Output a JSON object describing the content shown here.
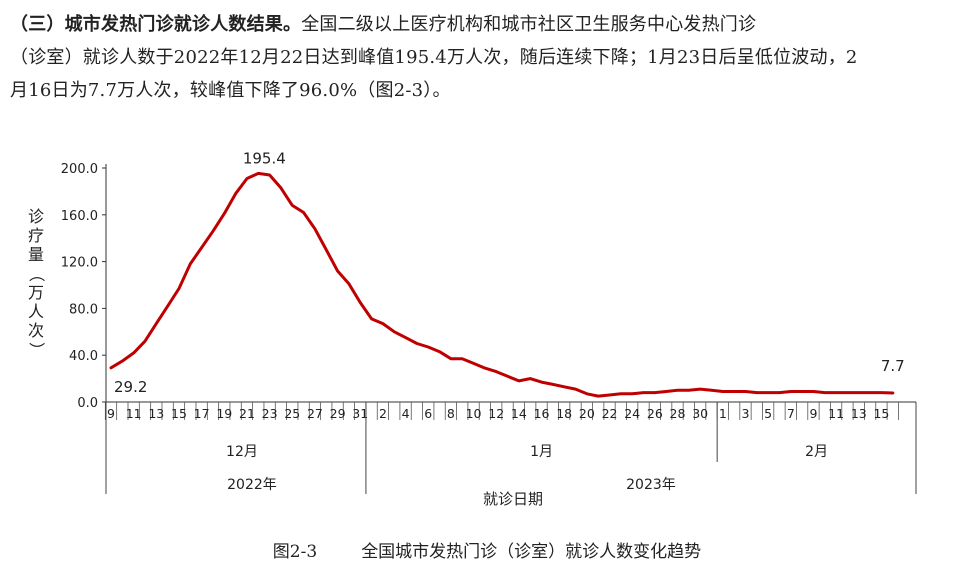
{
  "paragraph": {
    "heading": "（三）城市发热门诊就诊人数结果。",
    "body": "全国二级以上医疗机构和城市社区卫生服务中心发热门诊（诊室）就诊人数于2022年12月22日达到峰值195.4万人次，随后连续下降；1月23日后呈低位波动，2月16日为7.7万人次，较峰值下降了96.0%（图2-3）。",
    "lines": [
      [
        "（三）城市发热门诊就诊人数结果。",
        "全国二级以上医疗机构和城市社区卫生服务中心发热门诊"
      ],
      [
        "",
        "（诊室）就诊人数于2022年12月22日达到峰值195.4万人次，随后连续下降；1月23日后呈低位波动，2"
      ],
      [
        "",
        "月16日为7.7万人次，较峰值下降了96.0%（图2-3）。"
      ]
    ]
  },
  "caption": {
    "number": "图2-3",
    "text": "全国城市发热门诊（诊室）就诊人数变化趋势"
  },
  "chart_data": {
    "type": "line",
    "ylabel": "诊疗量（万人次）",
    "xlabel": "就诊日期",
    "ylim": [
      0,
      200
    ],
    "yticks": [
      "0.0",
      "40.0",
      "80.0",
      "120.0",
      "160.0",
      "200.0"
    ],
    "grid": false,
    "line_color": "#c00000",
    "x_tick_labels": [
      "9",
      "11",
      "13",
      "15",
      "17",
      "19",
      "21",
      "23",
      "25",
      "27",
      "29",
      "31",
      "2",
      "4",
      "6",
      "8",
      "10",
      "12",
      "14",
      "16",
      "18",
      "20",
      "22",
      "24",
      "26",
      "28",
      "30",
      "1",
      "3",
      "5",
      "7",
      "9",
      "11",
      "13",
      "15"
    ],
    "months": [
      {
        "label": "12月",
        "year": "2022年"
      },
      {
        "label": "1月",
        "year": "2023年"
      },
      {
        "label": "2月",
        "year": "2023年"
      }
    ],
    "years": [
      "2022年",
      "2023年"
    ],
    "annotations": [
      {
        "text": "195.4",
        "x": "2022-12-22"
      },
      {
        "text": "29.2",
        "x": "2022-12-09"
      },
      {
        "text": "7.7",
        "x": "2023-02-16"
      }
    ],
    "series": [
      {
        "x": [
          "2022-12-09",
          "2022-12-10",
          "2022-12-11",
          "2022-12-12",
          "2022-12-13",
          "2022-12-14",
          "2022-12-15",
          "2022-12-16",
          "2022-12-17",
          "2022-12-18",
          "2022-12-19",
          "2022-12-20",
          "2022-12-21",
          "2022-12-22",
          "2022-12-23",
          "2022-12-24",
          "2022-12-25",
          "2022-12-26",
          "2022-12-27",
          "2022-12-28",
          "2022-12-29",
          "2022-12-30",
          "2022-12-31",
          "2023-01-01",
          "2023-01-02",
          "2023-01-03",
          "2023-01-04",
          "2023-01-05",
          "2023-01-06",
          "2023-01-07",
          "2023-01-08",
          "2023-01-09",
          "2023-01-10",
          "2023-01-11",
          "2023-01-12",
          "2023-01-13",
          "2023-01-14",
          "2023-01-15",
          "2023-01-16",
          "2023-01-17",
          "2023-01-18",
          "2023-01-19",
          "2023-01-20",
          "2023-01-21",
          "2023-01-22",
          "2023-01-23",
          "2023-01-24",
          "2023-01-25",
          "2023-01-26",
          "2023-01-27",
          "2023-01-28",
          "2023-01-29",
          "2023-01-30",
          "2023-01-31",
          "2023-02-01",
          "2023-02-02",
          "2023-02-03",
          "2023-02-04",
          "2023-02-05",
          "2023-02-06",
          "2023-02-07",
          "2023-02-08",
          "2023-02-09",
          "2023-02-10",
          "2023-02-11",
          "2023-02-12",
          "2023-02-13",
          "2023-02-14",
          "2023-02-15",
          "2023-02-16"
        ],
        "values": [
          29.2,
          35,
          42,
          52,
          67,
          82,
          97,
          118,
          132,
          146,
          161,
          178,
          191,
          195.4,
          194,
          183,
          168,
          162,
          148,
          130,
          112,
          101,
          85,
          71,
          67,
          60,
          55,
          50,
          47,
          43,
          37,
          37,
          33,
          29,
          26,
          22,
          18,
          20,
          17,
          15,
          13,
          11,
          7,
          5,
          6,
          7,
          7,
          8,
          8,
          9,
          10,
          10,
          11,
          10,
          9,
          9,
          9,
          8,
          8,
          8,
          9,
          9,
          9,
          8,
          8,
          8,
          8,
          8,
          8,
          7.7
        ]
      }
    ]
  }
}
